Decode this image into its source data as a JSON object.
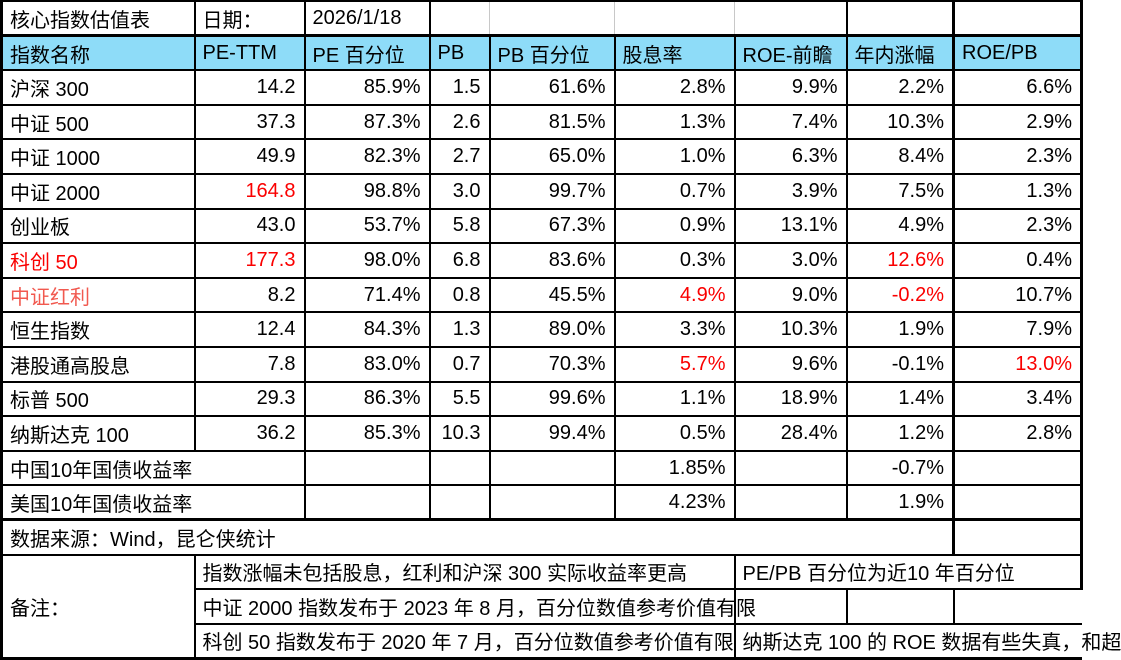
{
  "title_bar": {
    "title": "核心指数估值表",
    "date_label": "日期：",
    "date_value": "2026/1/18"
  },
  "columns": [
    "指数名称",
    "PE-TTM",
    "PE 百分位",
    "PB",
    "PB 百分位",
    "股息率",
    "ROE-前瞻",
    "年内涨幅",
    "ROE/PB"
  ],
  "index_rows": [
    {
      "name": "沪深 300",
      "name_color": "black",
      "values": [
        "14.2",
        "85.9%",
        "1.5",
        "61.6%",
        "2.8%",
        "9.9%",
        "2.2%",
        "6.6%"
      ],
      "red_cols": []
    },
    {
      "name": "中证 500",
      "name_color": "black",
      "values": [
        "37.3",
        "87.3%",
        "2.6",
        "81.5%",
        "1.3%",
        "7.4%",
        "10.3%",
        "2.9%"
      ],
      "red_cols": []
    },
    {
      "name": "中证 1000",
      "name_color": "black",
      "values": [
        "49.9",
        "82.3%",
        "2.7",
        "65.0%",
        "1.0%",
        "6.3%",
        "8.4%",
        "2.3%"
      ],
      "red_cols": []
    },
    {
      "name": "中证 2000",
      "name_color": "black",
      "values": [
        "164.8",
        "98.8%",
        "3.0",
        "99.7%",
        "0.7%",
        "3.9%",
        "7.5%",
        "1.3%"
      ],
      "red_cols": [
        0
      ]
    },
    {
      "name": "创业板",
      "name_color": "black",
      "values": [
        "43.0",
        "53.7%",
        "5.8",
        "67.3%",
        "0.9%",
        "13.1%",
        "4.9%",
        "2.3%"
      ],
      "red_cols": []
    },
    {
      "name": "科创 50",
      "name_color": "red",
      "values": [
        "177.3",
        "98.0%",
        "6.8",
        "83.6%",
        "0.3%",
        "3.0%",
        "12.6%",
        "0.4%"
      ],
      "red_cols": [
        0,
        6
      ]
    },
    {
      "name": "中证红利",
      "name_color": "soft-red",
      "values": [
        "8.2",
        "71.4%",
        "0.8",
        "45.5%",
        "4.9%",
        "9.0%",
        "-0.2%",
        "10.7%"
      ],
      "red_cols": [
        4,
        6
      ]
    },
    {
      "name": "恒生指数",
      "name_color": "black",
      "values": [
        "12.4",
        "84.3%",
        "1.3",
        "89.0%",
        "3.3%",
        "10.3%",
        "1.9%",
        "7.9%"
      ],
      "red_cols": []
    },
    {
      "name": "港股通高股息",
      "name_color": "black",
      "values": [
        "7.8",
        "83.0%",
        "0.7",
        "70.3%",
        "5.7%",
        "9.6%",
        "-0.1%",
        "13.0%"
      ],
      "red_cols": [
        4,
        7
      ]
    },
    {
      "name": "标普 500",
      "name_color": "black",
      "values": [
        "29.3",
        "86.3%",
        "5.5",
        "99.6%",
        "1.1%",
        "18.9%",
        "1.4%",
        "3.4%"
      ],
      "red_cols": []
    },
    {
      "name": "纳斯达克 100",
      "name_color": "black",
      "values": [
        "36.2",
        "85.3%",
        "10.3",
        "99.4%",
        "0.5%",
        "28.4%",
        "1.2%",
        "2.8%"
      ],
      "red_cols": []
    }
  ],
  "bond_rows": [
    {
      "name": "中国10年国债收益率",
      "dividend_yield": "1.85%",
      "ytd_change": "-0.7%"
    },
    {
      "name": "美国10年国债收益率",
      "dividend_yield": "4.23%",
      "ytd_change": "1.9%"
    }
  ],
  "source_row": {
    "text": "数据来源：Wind，昆仑侠统计"
  },
  "notes": {
    "label": "备注：",
    "items": [
      "指数涨幅未包括股息，红利和沪深 300 实际收益率更高",
      "中证 2000 指数发布于 2023 年 8 月，百分位数值参考价值有限",
      "科创 50 指数发布于 2020 年 7 月，百分位数值参考价值有限"
    ],
    "right_note_1": "PE/PB 百分位为近10 年百分位",
    "right_note_2": "纳斯达克 100 的 ROE 数据有些失真，和超"
  },
  "colors": {
    "header_fill": "#8EDCF8",
    "red": "#FA0000",
    "soft_red": "#F1594F",
    "grid": "#000000",
    "light_grid": "#C8C8C8"
  }
}
